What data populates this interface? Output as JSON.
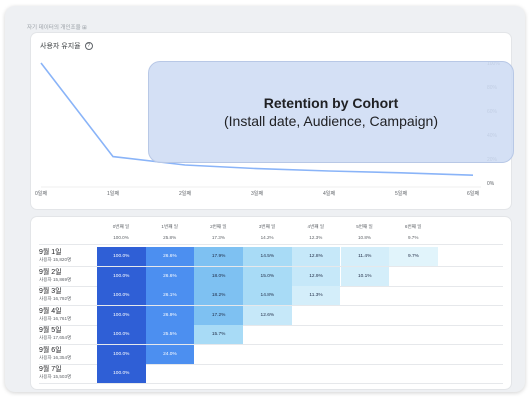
{
  "breadcrumb": "자기 데이터의 개인조율 ⊞",
  "chart": {
    "title": "사용자 유지율",
    "help_icon": "question-circle-icon",
    "x_labels": [
      "0일째",
      "1일째",
      "2일째",
      "3일째",
      "4일째",
      "5일째",
      "6일째"
    ],
    "y_labels": [
      "100%",
      "80%",
      "60%",
      "40%",
      "20%",
      "0%"
    ],
    "line_color": "#8ab4f8"
  },
  "chart_data": {
    "type": "line",
    "x": [
      "0일째",
      "1일째",
      "2일째",
      "3일째",
      "4일째",
      "5일째",
      "6일째"
    ],
    "series": [
      {
        "values": [
          100,
          22,
          15,
          12,
          10,
          8.5,
          6.5
        ]
      }
    ],
    "ylim": [
      0,
      100
    ],
    "title": "사용자 유지율",
    "grid": false
  },
  "overlay": {
    "title": "Retention by Cohort",
    "subtitle": "(Install date, Audience, Campaign)"
  },
  "cohort": {
    "columns": [
      "0번째 일",
      "1번째 일",
      "2번째 일",
      "3번째 일",
      "4번째 일",
      "5번째 일",
      "6번째 일"
    ],
    "totals": [
      "100.0%",
      "25.8%",
      "17.3%",
      "14.2%",
      "12.3%",
      "10.8%",
      "9.7%"
    ],
    "rows": [
      {
        "date": "9월 1일",
        "users": "사용자 15,820명",
        "values": [
          "100.0%",
          "26.6%",
          "17.9%",
          "14.5%",
          "12.8%",
          "11.4%",
          "9.7%"
        ],
        "levels": [
          1,
          0.27,
          0.18,
          0.145,
          0.128,
          0.114,
          0.097
        ]
      },
      {
        "date": "9월 2일",
        "users": "사용자 15,869명",
        "values": [
          "100.0%",
          "26.6%",
          "18.0%",
          "15.0%",
          "12.9%",
          "10.1%"
        ],
        "levels": [
          1,
          0.27,
          0.18,
          0.15,
          0.129,
          0.101
        ]
      },
      {
        "date": "9월 3일",
        "users": "사용자 16,792명",
        "values": [
          "100.0%",
          "26.1%",
          "18.2%",
          "14.8%",
          "11.3%"
        ],
        "levels": [
          1,
          0.26,
          0.18,
          0.148,
          0.113
        ]
      },
      {
        "date": "9월 4일",
        "users": "사용자 16,761명",
        "values": [
          "100.0%",
          "26.9%",
          "17.2%",
          "12.6%"
        ],
        "levels": [
          1,
          0.27,
          0.17,
          0.126
        ]
      },
      {
        "date": "9월 5일",
        "users": "사용자 17,654명",
        "values": [
          "100.0%",
          "25.5%",
          "15.7%"
        ],
        "levels": [
          1,
          0.255,
          0.157
        ]
      },
      {
        "date": "9월 6일",
        "users": "사용자 16,354명",
        "values": [
          "100.0%",
          "24.0%"
        ],
        "levels": [
          1,
          0.24
        ]
      },
      {
        "date": "9월 7일",
        "users": "사용자 15,503명",
        "values": [
          "100.0%"
        ],
        "levels": [
          1
        ]
      }
    ]
  }
}
